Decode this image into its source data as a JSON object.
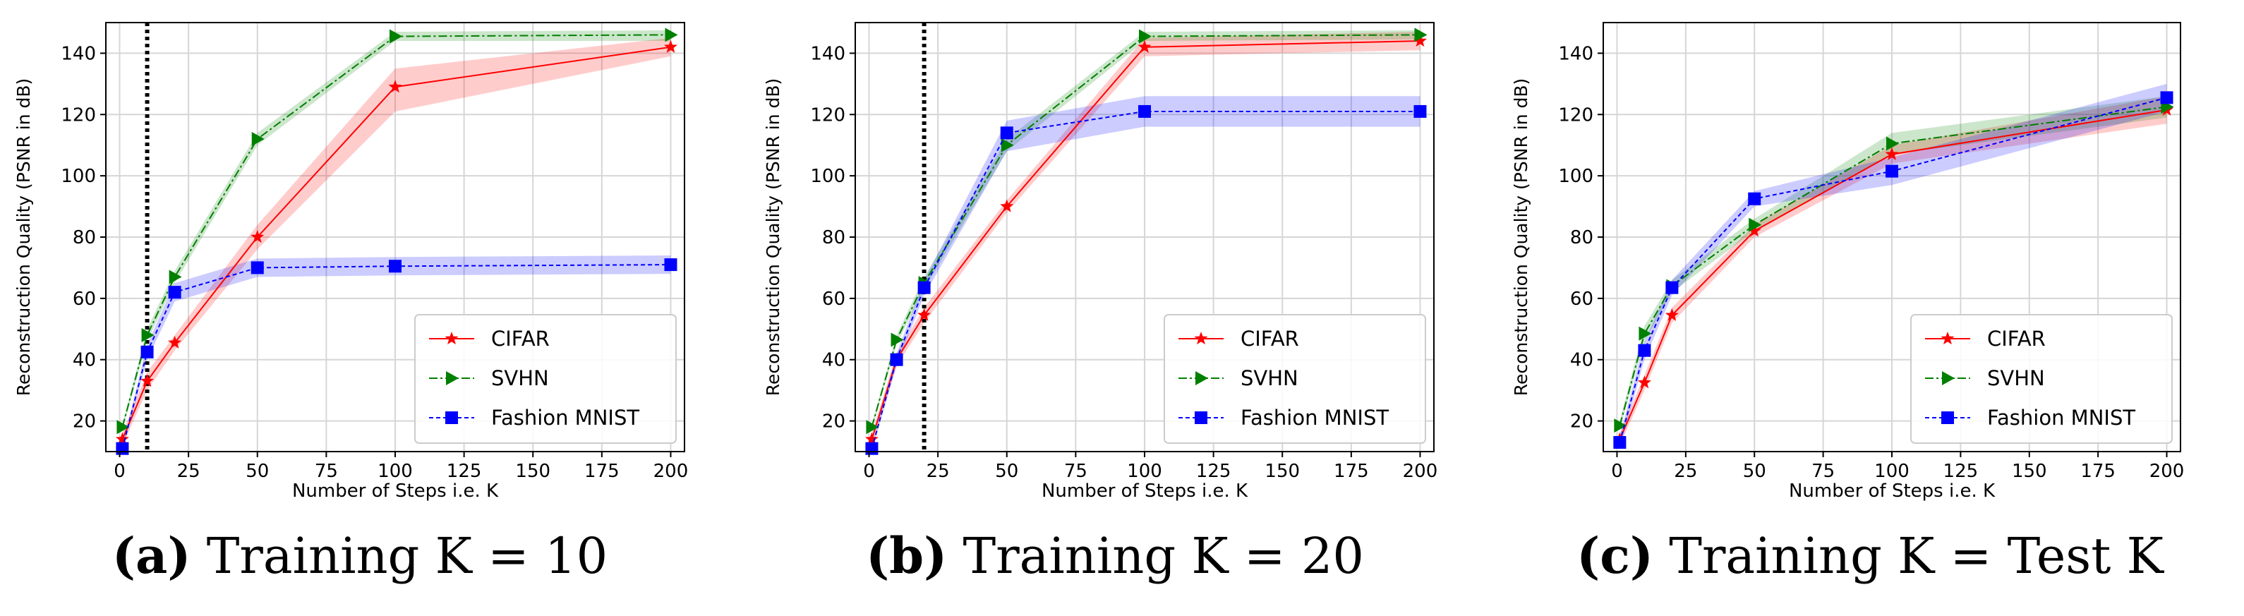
{
  "colors": {
    "CIFAR": "#ff0000",
    "SVHN": "#008000",
    "Fashion MNIST": "#0000ff"
  },
  "chart_data": [
    {
      "type": "line",
      "caption_letter": "(a)",
      "caption_text": "Training K = 10",
      "xlabel": "Number of Steps i.e. K",
      "ylabel": "Reconstruction Quality (PSNR in dB)",
      "xlim": [
        -5,
        205
      ],
      "ylim": [
        10,
        150
      ],
      "xticks": [
        0,
        25,
        50,
        75,
        100,
        125,
        150,
        175,
        200
      ],
      "yticks": [
        20,
        40,
        60,
        80,
        100,
        120,
        140
      ],
      "xtick_labels": [
        "0",
        "25",
        "50",
        "75",
        "100",
        "125",
        "150",
        "175",
        "200"
      ],
      "ytick_labels": [
        "20",
        "40",
        "60",
        "80",
        "100",
        "120",
        "140"
      ],
      "grid": true,
      "legend_position": "lower-right",
      "vline": 10,
      "x": [
        1,
        10,
        20,
        50,
        100,
        200
      ],
      "series": [
        {
          "name": "CIFAR",
          "marker": "star",
          "values": [
            14,
            33,
            45.5,
            80,
            129,
            142
          ],
          "lower": [
            12,
            30,
            43,
            76,
            121,
            139
          ],
          "upper": [
            16,
            36,
            48,
            84,
            135,
            145
          ]
        },
        {
          "name": "SVHN",
          "marker": "triangle-right",
          "values": [
            18,
            48,
            67,
            112,
            145.5,
            146
          ],
          "lower": [
            17,
            46,
            65,
            110,
            144,
            144
          ],
          "upper": [
            19,
            50,
            69,
            114,
            147,
            147.5
          ]
        },
        {
          "name": "Fashion MNIST",
          "marker": "square",
          "values": [
            11,
            42.5,
            62,
            70,
            70.5,
            71
          ],
          "lower": [
            10,
            40,
            59,
            67,
            67.5,
            68
          ],
          "upper": [
            12,
            45,
            65,
            73,
            73.5,
            74
          ]
        }
      ]
    },
    {
      "type": "line",
      "caption_letter": "(b)",
      "caption_text": "Training K = 20",
      "xlabel": "Number of Steps i.e. K",
      "ylabel": "Reconstruction Quality (PSNR in dB)",
      "xlim": [
        -5,
        205
      ],
      "ylim": [
        10,
        150
      ],
      "xticks": [
        0,
        25,
        50,
        75,
        100,
        125,
        150,
        175,
        200
      ],
      "yticks": [
        20,
        40,
        60,
        80,
        100,
        120,
        140
      ],
      "xtick_labels": [
        "0",
        "25",
        "50",
        "75",
        "100",
        "125",
        "150",
        "175",
        "200"
      ],
      "ytick_labels": [
        "20",
        "40",
        "60",
        "80",
        "100",
        "120",
        "140"
      ],
      "grid": true,
      "legend_position": "lower-right",
      "vline": 20,
      "x": [
        1,
        10,
        20,
        50,
        100,
        200
      ],
      "series": [
        {
          "name": "CIFAR",
          "marker": "star",
          "values": [
            14,
            40,
            54.5,
            90,
            142,
            144
          ],
          "lower": [
            12,
            38,
            52,
            88,
            139,
            141
          ],
          "upper": [
            16,
            42,
            57,
            92,
            145,
            147
          ]
        },
        {
          "name": "SVHN",
          "marker": "triangle-right",
          "values": [
            18,
            46.5,
            65,
            110,
            145.5,
            146
          ],
          "lower": [
            17,
            45,
            63,
            108,
            144,
            144.5
          ],
          "upper": [
            19,
            48,
            67,
            112,
            147,
            147.5
          ]
        },
        {
          "name": "Fashion MNIST",
          "marker": "square",
          "values": [
            11,
            40,
            63.5,
            114,
            121,
            121
          ],
          "lower": [
            10,
            38,
            61,
            108,
            116,
            116
          ],
          "upper": [
            12,
            42,
            66,
            118,
            126,
            126
          ]
        }
      ]
    },
    {
      "type": "line",
      "caption_letter": "(c)",
      "caption_text": "Training K = Test K",
      "xlabel": "Number of Steps i.e. K",
      "ylabel": "Reconstruction Quality (PSNR in dB)",
      "xlim": [
        -5,
        205
      ],
      "ylim": [
        10,
        150
      ],
      "xticks": [
        0,
        25,
        50,
        75,
        100,
        125,
        150,
        175,
        200
      ],
      "yticks": [
        20,
        40,
        60,
        80,
        100,
        120,
        140
      ],
      "xtick_labels": [
        "0",
        "25",
        "50",
        "75",
        "100",
        "125",
        "150",
        "175",
        "200"
      ],
      "ytick_labels": [
        "20",
        "40",
        "60",
        "80",
        "100",
        "120",
        "140"
      ],
      "grid": true,
      "legend_position": "lower-right",
      "vline": null,
      "x": [
        1,
        10,
        20,
        50,
        100,
        200
      ],
      "series": [
        {
          "name": "CIFAR",
          "marker": "star",
          "values": [
            14,
            32.5,
            54.5,
            82,
            107,
            121.5
          ],
          "lower": [
            12,
            30,
            52,
            80,
            104,
            117
          ],
          "upper": [
            16,
            35,
            57,
            84,
            110,
            126
          ]
        },
        {
          "name": "SVHN",
          "marker": "triangle-right",
          "values": [
            18.5,
            48.5,
            64,
            84,
            110.5,
            122.5
          ],
          "lower": [
            17,
            46,
            62,
            82,
            107,
            119
          ],
          "upper": [
            20,
            51,
            66,
            86,
            114,
            126
          ]
        },
        {
          "name": "Fashion MNIST",
          "marker": "square",
          "values": [
            13,
            43,
            63.5,
            92.5,
            101.5,
            125.5
          ],
          "lower": [
            11,
            40,
            61,
            90,
            97,
            121
          ],
          "upper": [
            15,
            46,
            66,
            95,
            106,
            130
          ]
        }
      ]
    }
  ]
}
